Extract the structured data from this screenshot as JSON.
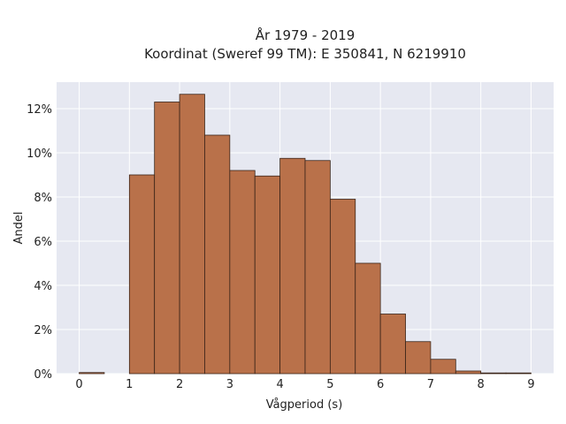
{
  "chart_data": {
    "type": "bar",
    "title_lines": [
      "År 1979 - 2019",
      "Koordinat (Sweref 99 TM): E 350841, N 6219910"
    ],
    "xlabel": "Vågperiod (s)",
    "ylabel": "Andel",
    "bin_width": 0.5,
    "bins": [
      {
        "x0": 0.0,
        "value": 0.05
      },
      {
        "x0": 0.5,
        "value": 0.0
      },
      {
        "x0": 1.0,
        "value": 9.0
      },
      {
        "x0": 1.5,
        "value": 12.3
      },
      {
        "x0": 2.0,
        "value": 12.65
      },
      {
        "x0": 2.5,
        "value": 10.8
      },
      {
        "x0": 3.0,
        "value": 9.2
      },
      {
        "x0": 3.5,
        "value": 8.95
      },
      {
        "x0": 4.0,
        "value": 9.75
      },
      {
        "x0": 4.5,
        "value": 9.65
      },
      {
        "x0": 5.0,
        "value": 7.9
      },
      {
        "x0": 5.5,
        "value": 5.0
      },
      {
        "x0": 6.0,
        "value": 2.7
      },
      {
        "x0": 6.5,
        "value": 1.45
      },
      {
        "x0": 7.0,
        "value": 0.65
      },
      {
        "x0": 7.5,
        "value": 0.12
      },
      {
        "x0": 8.0,
        "value": 0.03
      },
      {
        "x0": 8.5,
        "value": 0.02
      }
    ],
    "xlim": [
      -0.45,
      9.45
    ],
    "ylim": [
      0,
      13.2
    ],
    "xticks": [
      0,
      1,
      2,
      3,
      4,
      5,
      6,
      7,
      8,
      9
    ],
    "yticks": [
      0,
      2,
      4,
      6,
      8,
      10,
      12
    ],
    "ytick_suffix": "%",
    "grid": true,
    "bar_color": "#b9714a",
    "bar_edge_color": "#3a2418",
    "plot_bg": "#e6e8f1",
    "grid_color": "#ffffff"
  }
}
